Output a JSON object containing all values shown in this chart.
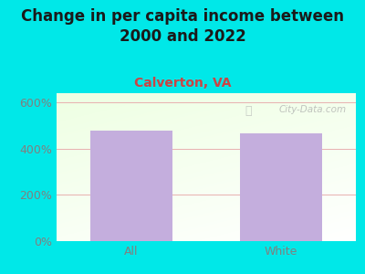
{
  "title": "Change in per capita income between\n2000 and 2022",
  "subtitle": "Calverton, VA",
  "categories": [
    "All",
    "White"
  ],
  "values": [
    480,
    465
  ],
  "bar_color": "#c4aedd",
  "bg_color": "#00e8e8",
  "title_color": "#1a1a1a",
  "subtitle_color": "#cc4444",
  "tick_label_color": "#808080",
  "ytick_labels": [
    "0%",
    "200%",
    "400%",
    "600%"
  ],
  "ytick_values": [
    0,
    200,
    400,
    600
  ],
  "ylim": [
    0,
    640
  ],
  "xlim": [
    -0.5,
    1.5
  ],
  "grid_color": "#e8b0b0",
  "watermark": "City-Data.com",
  "title_fontsize": 12,
  "subtitle_fontsize": 10,
  "tick_fontsize": 9
}
